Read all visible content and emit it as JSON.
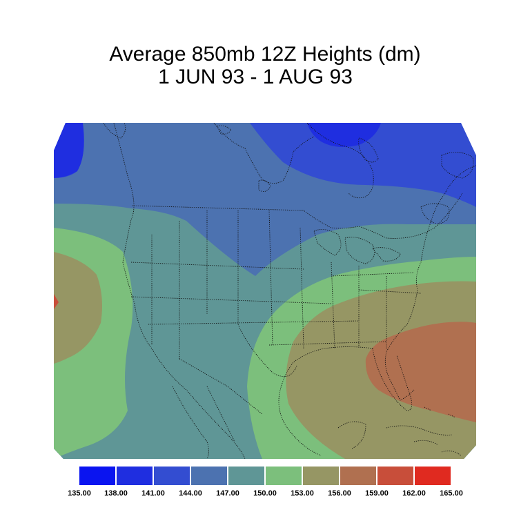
{
  "title": {
    "line1": "Average 850mb 12Z Heights (dm)",
    "line2": "1 JUN 93 - 1 AUG 93"
  },
  "map": {
    "projection": "polar stereographic",
    "region": "North America / United States",
    "field": "850mb geopotential height"
  },
  "colorbar": {
    "levels": [
      "135.00",
      "138.00",
      "141.00",
      "144.00",
      "147.00",
      "150.00",
      "153.00",
      "156.00",
      "159.00",
      "162.00",
      "165.00"
    ],
    "colors": [
      "#0a14f0",
      "#1f2ee0",
      "#334dd1",
      "#4c72b0",
      "#5f9696",
      "#7cbf7c",
      "#969664",
      "#b07050",
      "#c84e3a",
      "#e02a20"
    ]
  },
  "contour_colors": {
    "141-144": "#334dd1",
    "138-141": "#1f2ee0",
    "144-147": "#4c72b0",
    "147-150": "#5f9696",
    "150-153": "#7cbf7c",
    "153-156": "#969664",
    "156-159": "#b07050",
    "159-162": "#c84e3a"
  }
}
